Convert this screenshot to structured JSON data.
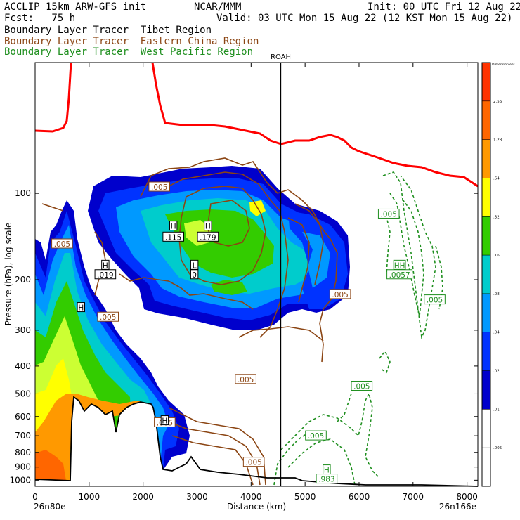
{
  "header": {
    "model": "ACCLIP 15km ARW-GFS init",
    "center": "NCAR/MMM",
    "init": "Init: 00 UTC Fri 12 Aug 22",
    "fcst": "Fcst:   75 h",
    "valid": "Valid: 03 UTC Mon 15 Aug 22 (12 KST Mon 15 Aug 22)",
    "legend_lines": [
      "Boundary Layer Tracer  Tibet Region",
      "Boundary Layer Tracer  Eastern China Region",
      "Boundary Layer Tracer  West Pacific Region"
    ],
    "marker_label": "ROAH"
  },
  "colors": {
    "tibet": "#000000",
    "eastern_china": "#8b4513",
    "west_pacific": "#1f8f1f",
    "tropopause": "#ff0000",
    "terrain": "#000000"
  },
  "chart_data": {
    "type": "heatmap",
    "xlabel": "Distance (km)",
    "ylabel": "Pressure (hPa), log scale",
    "xlim": [
      0,
      8200
    ],
    "ylim": [
      1050,
      35
    ],
    "y_scale": "log",
    "x_ticks": [
      "0",
      "1000",
      "2000",
      "3000",
      "4000",
      "5000",
      "6000",
      "7000",
      "8000"
    ],
    "y_ticks": [
      "100",
      "200",
      "300",
      "400",
      "500",
      "600",
      "700",
      "800",
      "900",
      "1000"
    ],
    "x_start_label": "26n80e",
    "x_end_label": "26n166e",
    "marker_x_km": 4550,
    "colorbar": {
      "title": "Dimensionless",
      "levels": [
        "2.56",
        "1.28",
        ".64",
        ".32",
        ".16",
        ".08",
        ".04",
        ".02",
        ".01",
        ".005"
      ],
      "colors": [
        "#ff3300",
        "#ff6600",
        "#ff9900",
        "#ffff00",
        "#33cc00",
        "#00cccc",
        "#0099ff",
        "#0033ff",
        "#0000cc",
        "#ffffff",
        "#ffffff"
      ]
    },
    "contour_labels": [
      {
        "text": ".005",
        "x": 2300,
        "p": 95,
        "series": "eastern_china"
      },
      {
        "text": ".005",
        "x": 500,
        "p": 150,
        "series": "eastern_china"
      },
      {
        "text": ".005",
        "x": 1350,
        "p": 270,
        "series": "eastern_china"
      },
      {
        "text": ".005",
        "x": 3900,
        "p": 445,
        "series": "eastern_china"
      },
      {
        "text": ".005",
        "x": 5650,
        "p": 225,
        "series": "eastern_china"
      },
      {
        "text": ".005",
        "x": 2400,
        "p": 630,
        "series": "eastern_china"
      },
      {
        "text": ".005",
        "x": 4050,
        "p": 865,
        "series": "eastern_china"
      },
      {
        "text": ".005",
        "x": 6550,
        "p": 118,
        "series": "west_pacific"
      },
      {
        "text": ".005",
        "x": 7400,
        "p": 235,
        "series": "west_pacific"
      },
      {
        "text": ".005",
        "x": 6050,
        "p": 470,
        "series": "west_pacific"
      },
      {
        "text": ".005",
        "x": 5200,
        "p": 700,
        "series": "west_pacific"
      },
      {
        "text": "H",
        "x": 2560,
        "p": 130,
        "series": "tibet"
      },
      {
        "text": ".115",
        "x": 2560,
        "p": 142,
        "series": "tibet"
      },
      {
        "text": "H",
        "x": 3200,
        "p": 130,
        "series": "tibet"
      },
      {
        "text": ".179",
        "x": 3200,
        "p": 142,
        "series": "tibet"
      },
      {
        "text": "H",
        "x": 1300,
        "p": 178,
        "series": "tibet"
      },
      {
        "text": ".019",
        "x": 1300,
        "p": 192,
        "series": "tibet"
      },
      {
        "text": "L",
        "x": 2950,
        "p": 178,
        "series": "tibet"
      },
      {
        "text": "0",
        "x": 2950,
        "p": 192,
        "series": "tibet"
      },
      {
        "text": "H",
        "x": 850,
        "p": 250,
        "series": "tibet"
      },
      {
        "text": "H",
        "x": 2400,
        "p": 620,
        "series": "tibet"
      },
      {
        "text": "HH",
        "x": 6750,
        "p": 178,
        "series": "west_pacific"
      },
      {
        "text": ".0057",
        "x": 6750,
        "p": 192,
        "series": "west_pacific"
      },
      {
        "text": "H",
        "x": 5400,
        "p": 920,
        "series": "west_pacific"
      },
      {
        "text": ".983",
        "x": 5400,
        "p": 990,
        "series": "west_pacific"
      }
    ],
    "grid": false,
    "legend": "top-left"
  }
}
